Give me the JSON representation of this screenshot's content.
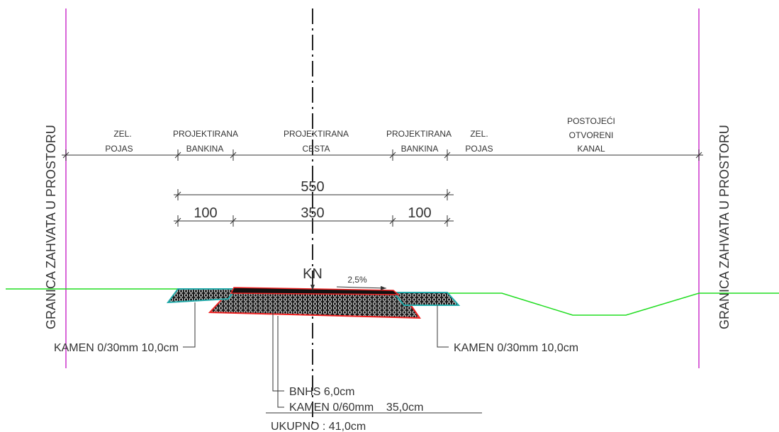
{
  "boundary": {
    "left_label": "GRANICA ZAHVATA U PROSTORU",
    "right_label": "GRANICA ZAHVATA U PROSTORU"
  },
  "zones": [
    {
      "line1": "ZEL.",
      "line2": "POJAS"
    },
    {
      "line1": "PROJEKTIRANA",
      "line2": "BANKINA"
    },
    {
      "line1": "PROJEKTIRANA",
      "line2": "CESTA"
    },
    {
      "line1": "PROJEKTIRANA",
      "line2": "BANKINA"
    },
    {
      "line1": "ZEL.",
      "line2": "POJAS"
    },
    {
      "line1": "POSTOJEĆI",
      "line2": "OTVORENI",
      "line3": "KANAL"
    }
  ],
  "dimensions": {
    "total": "550",
    "left_shoulder": "100",
    "road": "350",
    "right_shoulder": "100"
  },
  "road": {
    "axis_label": "KN",
    "slope": "2,5%"
  },
  "layers": {
    "left_shoulder": "KAMEN 0/30mm 10,0cm",
    "right_shoulder": "KAMEN 0/30mm 10,0cm",
    "asphalt": "BNHS 6,0cm",
    "base": "KAMEN 0/60mm    35,0cm",
    "total": "UKUPNO : 41,0cm"
  },
  "colors": {
    "boundary": "#cc33cc",
    "terrain": "#22dd22",
    "shoulder_outline": "#22aaaa",
    "road_outline": "#ee2222",
    "line": "#333333"
  }
}
